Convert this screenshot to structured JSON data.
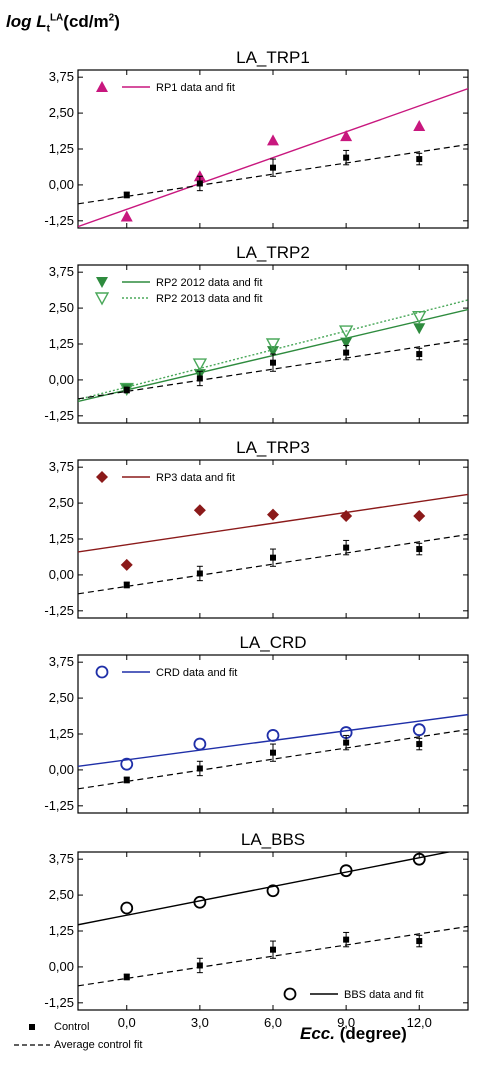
{
  "ylabel": {
    "prefix": "log L",
    "sub": "t",
    "sup": "LA",
    "unit": "(cd/m",
    "unit_sup": "2",
    "unit_end": ")"
  },
  "xlabel": {
    "italic": "Ecc.",
    "rest": " (degree)"
  },
  "bottom_legend": {
    "control": "Control",
    "avg_fit": "Average control fit"
  },
  "colors": {
    "rp1": "#c8177e",
    "rp2": "#2e8b3e",
    "rp2_2013": "#4aa85a",
    "rp3": "#8b1a1a",
    "crd": "#1f2fa8",
    "bbs": "#000000",
    "control": "#000000"
  },
  "chart_data": [
    {
      "type": "scatter",
      "title": "LA_TRP1",
      "x": [
        0,
        3,
        6,
        9,
        12
      ],
      "ylim": [
        -1.25,
        3.75
      ],
      "yticks": [
        "3,75",
        "2,50",
        "1,25",
        "0,00",
        "-1,25"
      ],
      "series": [
        {
          "name": "RP1 data and fit",
          "marker": "triangle-filled",
          "values": [
            -1.1,
            0.3,
            1.55,
            1.7,
            2.05
          ],
          "fit": [
            -0.85,
            2.75
          ]
        },
        {
          "name": "Control",
          "marker": "square",
          "values": [
            -0.35,
            0.05,
            0.6,
            0.95,
            0.9
          ],
          "err": [
            0.1,
            0.25,
            0.3,
            0.25,
            0.2
          ],
          "fit": [
            -0.4,
            1.15
          ]
        }
      ]
    },
    {
      "type": "scatter",
      "title": "LA_TRP2",
      "x": [
        0,
        3,
        6,
        9,
        12
      ],
      "ylim": [
        -1.25,
        3.75
      ],
      "yticks": [
        "3,75",
        "2,50",
        "1,25",
        "0,00",
        "-1,25"
      ],
      "series": [
        {
          "name": "RP2 2012 data and fit",
          "marker": "triangle-down-filled",
          "values": [
            -0.3,
            0.2,
            1.0,
            1.3,
            1.8
          ],
          "fit": [
            -0.35,
            2.05
          ]
        },
        {
          "name": "RP2 2013 data and fit",
          "marker": "triangle-down-open",
          "values": [
            -0.3,
            0.55,
            1.25,
            1.7,
            2.2
          ],
          "fit": [
            -0.25,
            2.35
          ]
        },
        {
          "name": "Control",
          "marker": "square",
          "values": [
            -0.35,
            0.05,
            0.6,
            0.95,
            0.9
          ],
          "err": [
            0.1,
            0.25,
            0.3,
            0.25,
            0.2
          ],
          "fit": [
            -0.4,
            1.15
          ]
        }
      ]
    },
    {
      "type": "scatter",
      "title": "LA_TRP3",
      "x": [
        0,
        3,
        6,
        9,
        12
      ],
      "ylim": [
        -1.25,
        3.75
      ],
      "yticks": [
        "3,75",
        "2,50",
        "1,25",
        "0,00",
        "-1,25"
      ],
      "series": [
        {
          "name": "RP3 data and fit",
          "marker": "diamond-filled",
          "values": [
            0.35,
            2.25,
            2.1,
            2.05,
            2.05
          ],
          "fit": [
            1.05,
            2.55
          ]
        },
        {
          "name": "Control",
          "marker": "square",
          "values": [
            -0.35,
            0.05,
            0.6,
            0.95,
            0.9
          ],
          "err": [
            0.1,
            0.25,
            0.3,
            0.25,
            0.2
          ],
          "fit": [
            -0.4,
            1.15
          ]
        }
      ]
    },
    {
      "type": "scatter",
      "title": "LA_CRD",
      "x": [
        0,
        3,
        6,
        9,
        12
      ],
      "ylim": [
        -1.25,
        3.75
      ],
      "yticks": [
        "3,75",
        "2,50",
        "1,25",
        "0,00",
        "-1,25"
      ],
      "series": [
        {
          "name": "CRD data and fit",
          "marker": "circle-open",
          "values": [
            0.2,
            0.9,
            1.2,
            1.3,
            1.4
          ],
          "fit": [
            0.35,
            1.7
          ]
        },
        {
          "name": "Control",
          "marker": "square",
          "values": [
            -0.35,
            0.05,
            0.6,
            0.95,
            0.9
          ],
          "err": [
            0.1,
            0.25,
            0.3,
            0.25,
            0.2
          ],
          "fit": [
            -0.4,
            1.15
          ]
        }
      ]
    },
    {
      "type": "scatter",
      "title": "LA_BBS",
      "x": [
        0,
        3,
        6,
        9,
        12
      ],
      "ylim": [
        -1.25,
        3.75
      ],
      "yticks": [
        "3,75",
        "2,50",
        "1,25",
        "0,00",
        "-1,25"
      ],
      "xticks": [
        "0,0",
        "3,0",
        "6,0",
        "9,0",
        "12,0"
      ],
      "legend_position": "bottom-right",
      "series": [
        {
          "name": "BBS data and fit",
          "marker": "circle-open",
          "values": [
            2.05,
            2.25,
            2.65,
            3.35,
            3.75
          ],
          "fit": [
            1.8,
            3.8
          ]
        },
        {
          "name": "Control",
          "marker": "square",
          "values": [
            -0.35,
            0.05,
            0.6,
            0.95,
            0.9
          ],
          "err": [
            0.1,
            0.25,
            0.3,
            0.25,
            0.2
          ],
          "fit": [
            -0.4,
            1.15
          ]
        }
      ]
    }
  ]
}
